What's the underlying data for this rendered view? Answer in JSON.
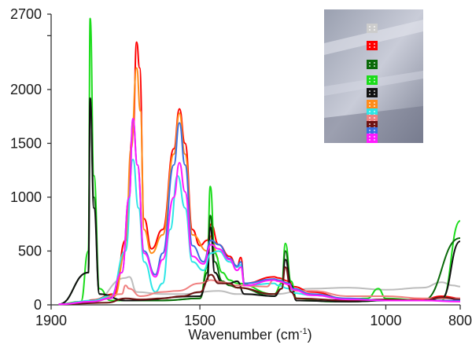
{
  "chart_data": {
    "type": "line",
    "title": "",
    "xlabel_main": "Wavenumber (cm",
    "xlabel_sup": "-1",
    "xlabel_tail": ")",
    "ylabel": "",
    "xlim": [
      1900,
      800
    ],
    "ylim": [
      0,
      2700
    ],
    "x_ticks": [
      1900,
      1500,
      1000,
      800
    ],
    "y_ticks": [
      0,
      500,
      1000,
      1500,
      2000,
      2700
    ],
    "grid": false,
    "legend": "inset photo with colored markers, top-right",
    "series": [
      {
        "color": "#bdbdbd",
        "points": [
          [
            1880,
            5
          ],
          [
            1790,
            20
          ],
          [
            1700,
            250
          ],
          [
            1690,
            260
          ],
          [
            1670,
            120
          ],
          [
            1600,
            100
          ],
          [
            1550,
            100
          ],
          [
            1450,
            130
          ],
          [
            1400,
            100
          ],
          [
            1300,
            100
          ],
          [
            1200,
            150
          ],
          [
            1100,
            160
          ],
          [
            1000,
            140
          ],
          [
            900,
            160
          ],
          [
            850,
            210
          ],
          [
            820,
            180
          ],
          [
            800,
            170
          ]
        ]
      },
      {
        "color": "#ff0000",
        "points": [
          [
            1880,
            5
          ],
          [
            1810,
            30
          ],
          [
            1790,
            45
          ],
          [
            1730,
            100
          ],
          [
            1700,
            600
          ],
          [
            1680,
            1600
          ],
          [
            1670,
            2440
          ],
          [
            1662,
            2200
          ],
          [
            1650,
            800
          ],
          [
            1630,
            520
          ],
          [
            1600,
            700
          ],
          [
            1570,
            1450
          ],
          [
            1555,
            1820
          ],
          [
            1540,
            1500
          ],
          [
            1520,
            700
          ],
          [
            1500,
            550
          ],
          [
            1480,
            600
          ],
          [
            1470,
            750
          ],
          [
            1450,
            560
          ],
          [
            1420,
            450
          ],
          [
            1400,
            350
          ],
          [
            1390,
            440
          ],
          [
            1380,
            200
          ],
          [
            1300,
            260
          ],
          [
            1290,
            250
          ],
          [
            1260,
            220
          ],
          [
            1250,
            170
          ],
          [
            1200,
            120
          ],
          [
            1100,
            50
          ],
          [
            1000,
            40
          ],
          [
            900,
            50
          ],
          [
            850,
            80
          ],
          [
            800,
            60
          ]
        ]
      },
      {
        "color": "#ff8c1a",
        "points": [
          [
            1880,
            5
          ],
          [
            1790,
            30
          ],
          [
            1730,
            80
          ],
          [
            1700,
            500
          ],
          [
            1685,
            1450
          ],
          [
            1670,
            2200
          ],
          [
            1660,
            1800
          ],
          [
            1650,
            700
          ],
          [
            1630,
            480
          ],
          [
            1600,
            650
          ],
          [
            1570,
            1400
          ],
          [
            1555,
            1780
          ],
          [
            1540,
            1400
          ],
          [
            1520,
            650
          ],
          [
            1480,
            500
          ],
          [
            1470,
            640
          ],
          [
            1450,
            430
          ]
        ]
      },
      {
        "color": "#1bdc1b",
        "points": [
          [
            1880,
            5
          ],
          [
            1820,
            30
          ],
          [
            1800,
            500
          ],
          [
            1795,
            2660
          ],
          [
            1785,
            1200
          ],
          [
            1770,
            150
          ],
          [
            1740,
            40
          ],
          [
            1700,
            40
          ],
          [
            1600,
            40
          ],
          [
            1500,
            60
          ],
          [
            1480,
            350
          ],
          [
            1472,
            1100
          ],
          [
            1460,
            480
          ],
          [
            1440,
            300
          ],
          [
            1420,
            230
          ],
          [
            1400,
            200
          ],
          [
            1300,
            100
          ],
          [
            1280,
            200
          ],
          [
            1270,
            570
          ],
          [
            1255,
            220
          ],
          [
            1240,
            60
          ],
          [
            1150,
            30
          ],
          [
            1050,
            60
          ],
          [
            1020,
            150
          ],
          [
            1000,
            60
          ],
          [
            900,
            40
          ],
          [
            850,
            40
          ],
          [
            800,
            780
          ]
        ]
      },
      {
        "color": "#0a6a0a",
        "points": [
          [
            1880,
            5
          ],
          [
            1800,
            300
          ],
          [
            1795,
            1900
          ],
          [
            1785,
            1000
          ],
          [
            1770,
            100
          ],
          [
            1700,
            40
          ],
          [
            1600,
            40
          ],
          [
            1500,
            60
          ],
          [
            1480,
            300
          ],
          [
            1472,
            830
          ],
          [
            1460,
            400
          ],
          [
            1440,
            220
          ],
          [
            1420,
            180
          ],
          [
            1400,
            160
          ],
          [
            1300,
            80
          ],
          [
            1280,
            150
          ],
          [
            1270,
            500
          ],
          [
            1255,
            180
          ],
          [
            1240,
            40
          ],
          [
            1100,
            30
          ],
          [
            1000,
            40
          ],
          [
            900,
            40
          ],
          [
            800,
            620
          ]
        ]
      },
      {
        "color": "#111111",
        "points": [
          [
            1880,
            5
          ],
          [
            1800,
            300
          ],
          [
            1795,
            1920
          ],
          [
            1785,
            900
          ],
          [
            1770,
            100
          ],
          [
            1700,
            40
          ],
          [
            1500,
            80
          ],
          [
            1480,
            220
          ],
          [
            1472,
            720
          ],
          [
            1460,
            300
          ],
          [
            1440,
            200
          ],
          [
            1420,
            200
          ],
          [
            1400,
            220
          ],
          [
            1380,
            100
          ],
          [
            1300,
            80
          ],
          [
            1280,
            150
          ],
          [
            1270,
            420
          ],
          [
            1255,
            180
          ],
          [
            1240,
            40
          ],
          [
            1100,
            30
          ],
          [
            1000,
            40
          ],
          [
            900,
            40
          ],
          [
            850,
            60
          ],
          [
            800,
            590
          ]
        ]
      },
      {
        "color": "#2ee6e6",
        "points": [
          [
            1880,
            5
          ],
          [
            1790,
            40
          ],
          [
            1740,
            80
          ],
          [
            1700,
            500
          ],
          [
            1680,
            1350
          ],
          [
            1665,
            900
          ],
          [
            1650,
            400
          ],
          [
            1620,
            120
          ],
          [
            1600,
            200
          ],
          [
            1580,
            700
          ],
          [
            1560,
            1200
          ],
          [
            1540,
            900
          ],
          [
            1520,
            400
          ],
          [
            1490,
            320
          ],
          [
            1470,
            480
          ],
          [
            1450,
            500
          ],
          [
            1420,
            400
          ],
          [
            1400,
            350
          ],
          [
            1390,
            370
          ],
          [
            1380,
            180
          ],
          [
            1300,
            200
          ],
          [
            1290,
            180
          ],
          [
            1260,
            150
          ],
          [
            1250,
            110
          ],
          [
            1200,
            90
          ],
          [
            1100,
            50
          ],
          [
            1000,
            40
          ],
          [
            900,
            40
          ],
          [
            800,
            40
          ]
        ]
      },
      {
        "color": "#f08080",
        "points": [
          [
            1880,
            5
          ],
          [
            1790,
            30
          ],
          [
            1710,
            100
          ],
          [
            1700,
            180
          ],
          [
            1690,
            150
          ],
          [
            1660,
            80
          ],
          [
            1600,
            120
          ],
          [
            1560,
            130
          ],
          [
            1500,
            200
          ],
          [
            1470,
            230
          ],
          [
            1440,
            210
          ],
          [
            1400,
            180
          ],
          [
            1320,
            170
          ],
          [
            1300,
            240
          ],
          [
            1280,
            210
          ],
          [
            1240,
            130
          ],
          [
            1200,
            130
          ],
          [
            1100,
            80
          ],
          [
            1000,
            80
          ],
          [
            900,
            60
          ],
          [
            850,
            60
          ],
          [
            800,
            60
          ]
        ]
      },
      {
        "color": "#6e1212",
        "points": [
          [
            1880,
            5
          ],
          [
            1750,
            20
          ],
          [
            1700,
            60
          ],
          [
            1660,
            50
          ],
          [
            1600,
            60
          ],
          [
            1550,
            80
          ],
          [
            1500,
            120
          ],
          [
            1470,
            280
          ],
          [
            1450,
            200
          ],
          [
            1420,
            200
          ],
          [
            1400,
            160
          ],
          [
            1300,
            100
          ],
          [
            1280,
            150
          ],
          [
            1270,
            350
          ],
          [
            1255,
            120
          ],
          [
            1240,
            60
          ],
          [
            1100,
            40
          ],
          [
            1000,
            50
          ],
          [
            900,
            40
          ],
          [
            850,
            70
          ],
          [
            800,
            50
          ]
        ]
      },
      {
        "color": "#3a6fe0",
        "points": [
          [
            1880,
            5
          ],
          [
            1790,
            30
          ],
          [
            1740,
            60
          ],
          [
            1710,
            300
          ],
          [
            1690,
            1000
          ],
          [
            1680,
            1720
          ],
          [
            1668,
            1300
          ],
          [
            1650,
            500
          ],
          [
            1620,
            280
          ],
          [
            1600,
            480
          ],
          [
            1570,
            1300
          ],
          [
            1555,
            1690
          ],
          [
            1540,
            1300
          ],
          [
            1520,
            550
          ],
          [
            1490,
            400
          ],
          [
            1470,
            600
          ],
          [
            1450,
            560
          ],
          [
            1420,
            430
          ],
          [
            1400,
            360
          ],
          [
            1390,
            400
          ],
          [
            1380,
            200
          ],
          [
            1300,
            240
          ],
          [
            1290,
            230
          ],
          [
            1260,
            200
          ],
          [
            1250,
            150
          ],
          [
            1200,
            100
          ],
          [
            1100,
            60
          ],
          [
            1000,
            40
          ],
          [
            900,
            40
          ],
          [
            800,
            40
          ]
        ]
      },
      {
        "color": "#ff1aff",
        "points": [
          [
            1880,
            5
          ],
          [
            1790,
            30
          ],
          [
            1740,
            60
          ],
          [
            1710,
            300
          ],
          [
            1690,
            1000
          ],
          [
            1680,
            1730
          ],
          [
            1668,
            1300
          ],
          [
            1650,
            480
          ],
          [
            1620,
            260
          ],
          [
            1600,
            420
          ],
          [
            1570,
            1000
          ],
          [
            1555,
            1320
          ],
          [
            1540,
            1050
          ],
          [
            1520,
            450
          ],
          [
            1490,
            380
          ],
          [
            1470,
            560
          ],
          [
            1450,
            520
          ],
          [
            1420,
            420
          ],
          [
            1400,
            320
          ],
          [
            1390,
            350
          ],
          [
            1380,
            180
          ],
          [
            1300,
            230
          ],
          [
            1290,
            220
          ],
          [
            1260,
            190
          ],
          [
            1250,
            140
          ],
          [
            1200,
            90
          ],
          [
            1100,
            50
          ],
          [
            1000,
            40
          ],
          [
            900,
            40
          ],
          [
            800,
            30
          ]
        ]
      }
    ],
    "inset": {
      "markers": [
        {
          "color": "#cccccc"
        },
        {
          "color": "#ff0000"
        },
        {
          "color": "#0a6a0a"
        },
        {
          "color": "#1bdc1b"
        },
        {
          "color": "#111111"
        },
        {
          "color": "#ff8c1a"
        },
        {
          "color": "#2ee6e6"
        },
        {
          "color": "#f08080"
        },
        {
          "color": "#6e1212"
        },
        {
          "color": "#3a6fe0"
        },
        {
          "color": "#ff1aff"
        }
      ]
    }
  }
}
